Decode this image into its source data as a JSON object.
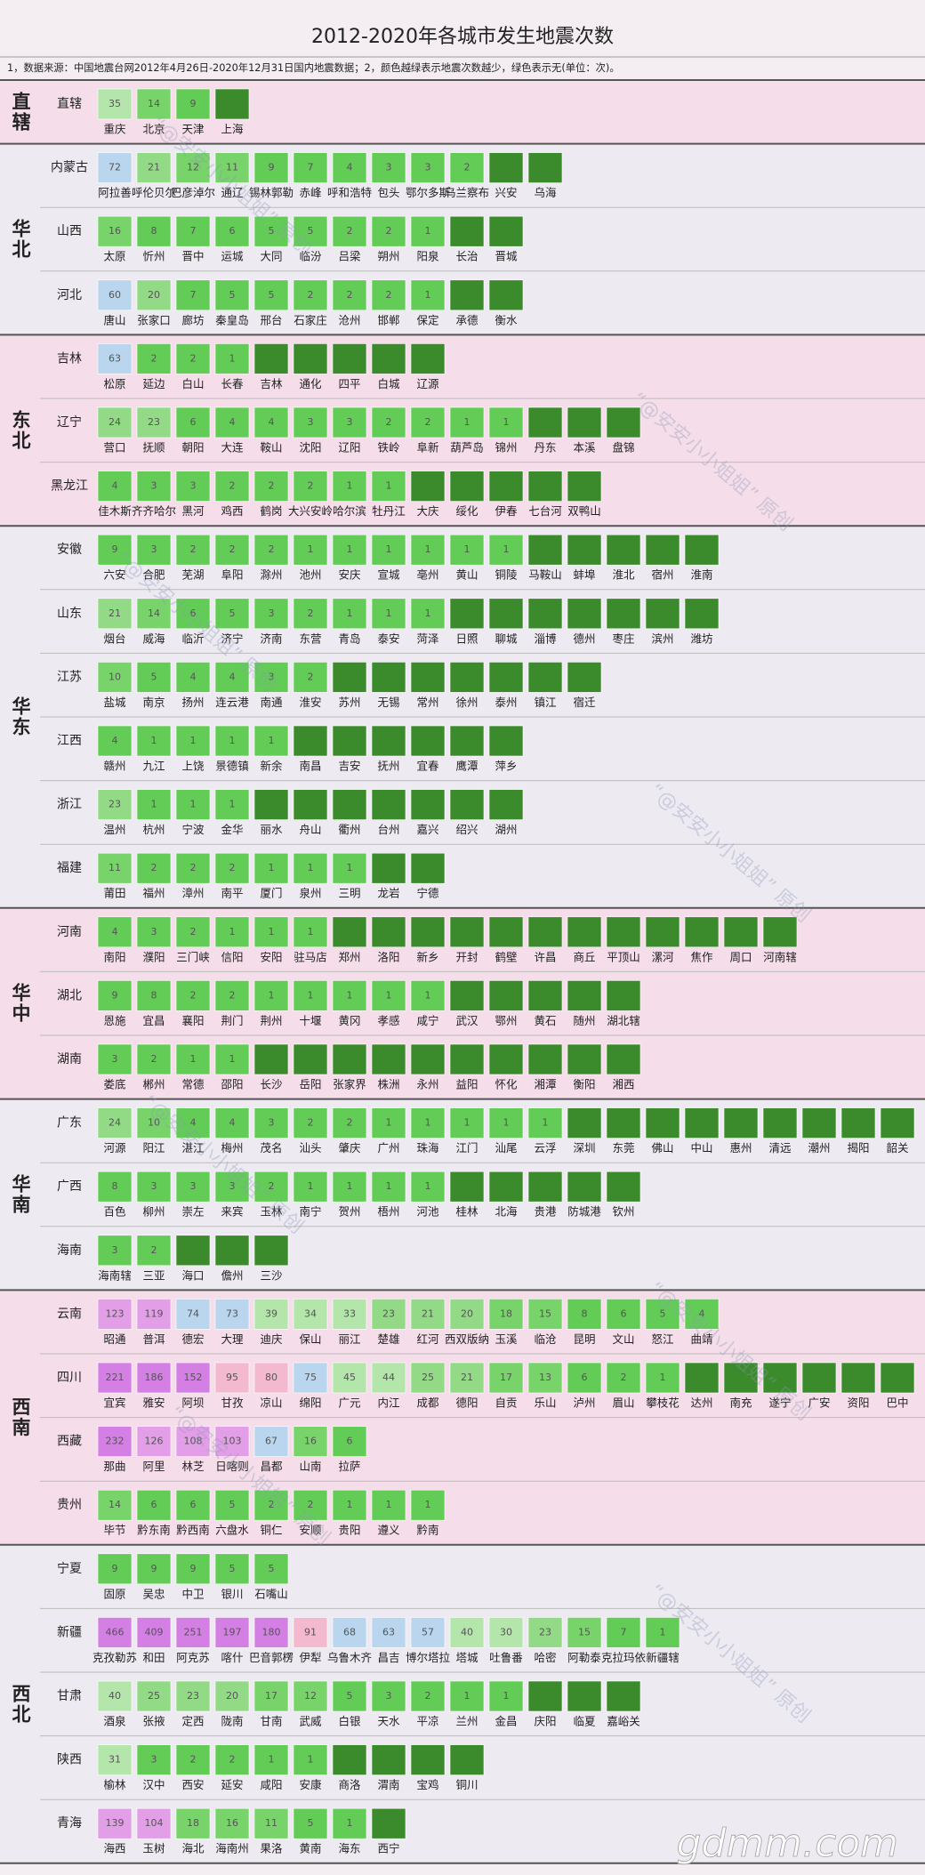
{
  "header": {
    "title": "2012-2020年各城市发生地震次数",
    "note": "1，数据来源：中国地震台网2012年4月26日-2020年12月31日国内地震数据；2，颜色越绿表示地震次数越少，绿色表示无(单位：次)。"
  },
  "watermark": "“@安安小小姐姐” 原创",
  "site": "gdmm.com",
  "regions": [
    {
      "name": "直辖",
      "provinces": [
        {
          "name": "直辖",
          "cities": [
            "重庆",
            "北京",
            "天津",
            "上海"
          ],
          "values": [
            35,
            14,
            9,
            null
          ]
        }
      ]
    },
    {
      "name": "华北",
      "provinces": [
        {
          "name": "内蒙古",
          "cities": [
            "阿拉善",
            "呼伦贝尔",
            "巴彦淖尔",
            "通辽",
            "锡林郭勒",
            "赤峰",
            "呼和浩特",
            "包头",
            "鄂尔多斯",
            "乌兰察布",
            "兴安",
            "乌海"
          ],
          "values": [
            72,
            21,
            12,
            11,
            9,
            7,
            4,
            3,
            3,
            2,
            null,
            null
          ]
        },
        {
          "name": "山西",
          "cities": [
            "太原",
            "忻州",
            "晋中",
            "运城",
            "大同",
            "临汾",
            "吕梁",
            "朔州",
            "阳泉",
            "长治",
            "晋城"
          ],
          "values": [
            16,
            8,
            7,
            6,
            5,
            5,
            2,
            2,
            1,
            null,
            null
          ]
        },
        {
          "name": "河北",
          "cities": [
            "唐山",
            "张家口",
            "廊坊",
            "秦皇岛",
            "邢台",
            "石家庄",
            "沧州",
            "邯郸",
            "保定",
            "承德",
            "衡水"
          ],
          "values": [
            60,
            20,
            7,
            5,
            5,
            2,
            2,
            2,
            1,
            null,
            null
          ]
        }
      ]
    },
    {
      "name": "东北",
      "provinces": [
        {
          "name": "吉林",
          "cities": [
            "松原",
            "延边",
            "白山",
            "长春",
            "吉林",
            "通化",
            "四平",
            "白城",
            "辽源"
          ],
          "values": [
            63,
            2,
            2,
            1,
            null,
            null,
            null,
            null,
            null
          ]
        },
        {
          "name": "辽宁",
          "cities": [
            "营口",
            "抚顺",
            "朝阳",
            "大连",
            "鞍山",
            "沈阳",
            "辽阳",
            "铁岭",
            "阜新",
            "葫芦岛",
            "锦州",
            "丹东",
            "本溪",
            "盘锦"
          ],
          "values": [
            24,
            23,
            6,
            4,
            4,
            3,
            3,
            2,
            2,
            1,
            1,
            null,
            null,
            null
          ]
        },
        {
          "name": "黑龙江",
          "cities": [
            "佳木斯",
            "齐齐哈尔",
            "黑河",
            "鸡西",
            "鹤岗",
            "大兴安岭",
            "哈尔滨",
            "牡丹江",
            "大庆",
            "绥化",
            "伊春",
            "七台河",
            "双鸭山"
          ],
          "values": [
            4,
            3,
            3,
            2,
            2,
            2,
            1,
            1,
            null,
            null,
            null,
            null,
            null
          ]
        }
      ]
    },
    {
      "name": "华东",
      "provinces": [
        {
          "name": "安徽",
          "cities": [
            "六安",
            "合肥",
            "芜湖",
            "阜阳",
            "滁州",
            "池州",
            "安庆",
            "宣城",
            "亳州",
            "黄山",
            "铜陵",
            "马鞍山",
            "蚌埠",
            "淮北",
            "宿州",
            "淮南"
          ],
          "values": [
            9,
            3,
            2,
            2,
            2,
            1,
            1,
            1,
            1,
            1,
            1,
            null,
            null,
            null,
            null,
            null
          ]
        },
        {
          "name": "山东",
          "cities": [
            "烟台",
            "威海",
            "临沂",
            "济宁",
            "济南",
            "东营",
            "青岛",
            "泰安",
            "菏泽",
            "日照",
            "聊城",
            "淄博",
            "德州",
            "枣庄",
            "滨州",
            "潍坊"
          ],
          "values": [
            21,
            14,
            6,
            5,
            3,
            2,
            1,
            1,
            1,
            null,
            null,
            null,
            null,
            null,
            null,
            null
          ]
        },
        {
          "name": "江苏",
          "cities": [
            "盐城",
            "南京",
            "扬州",
            "连云港",
            "南通",
            "淮安",
            "苏州",
            "无锡",
            "常州",
            "徐州",
            "泰州",
            "镇江",
            "宿迁"
          ],
          "values": [
            10,
            5,
            4,
            4,
            3,
            2,
            null,
            null,
            null,
            null,
            null,
            null,
            null
          ]
        },
        {
          "name": "江西",
          "cities": [
            "赣州",
            "九江",
            "上饶",
            "景德镇",
            "新余",
            "南昌",
            "吉安",
            "抚州",
            "宜春",
            "鹰潭",
            "萍乡"
          ],
          "values": [
            4,
            1,
            1,
            1,
            1,
            null,
            null,
            null,
            null,
            null,
            null
          ]
        },
        {
          "name": "浙江",
          "cities": [
            "温州",
            "杭州",
            "宁波",
            "金华",
            "丽水",
            "舟山",
            "衢州",
            "台州",
            "嘉兴",
            "绍兴",
            "湖州"
          ],
          "values": [
            23,
            1,
            1,
            1,
            null,
            null,
            null,
            null,
            null,
            null,
            null
          ]
        },
        {
          "name": "福建",
          "cities": [
            "莆田",
            "福州",
            "漳州",
            "南平",
            "厦门",
            "泉州",
            "三明",
            "龙岩",
            "宁德"
          ],
          "values": [
            11,
            2,
            2,
            2,
            1,
            1,
            1,
            null,
            null
          ]
        }
      ]
    },
    {
      "name": "华中",
      "provinces": [
        {
          "name": "河南",
          "cities": [
            "南阳",
            "濮阳",
            "三门峡",
            "信阳",
            "安阳",
            "驻马店",
            "郑州",
            "洛阳",
            "新乡",
            "开封",
            "鹤壁",
            "许昌",
            "商丘",
            "平顶山",
            "漯河",
            "焦作",
            "周口",
            "河南辖"
          ],
          "values": [
            4,
            3,
            2,
            1,
            1,
            1,
            null,
            null,
            null,
            null,
            null,
            null,
            null,
            null,
            null,
            null,
            null,
            null
          ]
        },
        {
          "name": "湖北",
          "cities": [
            "恩施",
            "宜昌",
            "襄阳",
            "荆门",
            "荆州",
            "十堰",
            "黄冈",
            "孝感",
            "咸宁",
            "武汉",
            "鄂州",
            "黄石",
            "随州",
            "湖北辖"
          ],
          "values": [
            9,
            8,
            2,
            2,
            1,
            1,
            1,
            1,
            1,
            null,
            null,
            null,
            null,
            null
          ]
        },
        {
          "name": "湖南",
          "cities": [
            "娄底",
            "郴州",
            "常德",
            "邵阳",
            "长沙",
            "岳阳",
            "张家界",
            "株洲",
            "永州",
            "益阳",
            "怀化",
            "湘潭",
            "衡阳",
            "湘西"
          ],
          "values": [
            3,
            2,
            1,
            1,
            null,
            null,
            null,
            null,
            null,
            null,
            null,
            null,
            null,
            null
          ]
        }
      ]
    },
    {
      "name": "华南",
      "provinces": [
        {
          "name": "广东",
          "cities": [
            "河源",
            "阳江",
            "湛江",
            "梅州",
            "茂名",
            "汕头",
            "肇庆",
            "广州",
            "珠海",
            "江门",
            "汕尾",
            "云浮",
            "深圳",
            "东莞",
            "佛山",
            "中山",
            "惠州",
            "清远",
            "潮州",
            "揭阳",
            "韶关"
          ],
          "values": [
            24,
            10,
            4,
            4,
            3,
            2,
            2,
            1,
            1,
            1,
            1,
            1,
            null,
            null,
            null,
            null,
            null,
            null,
            null,
            null,
            null
          ]
        },
        {
          "name": "广西",
          "cities": [
            "百色",
            "柳州",
            "崇左",
            "来宾",
            "玉林",
            "南宁",
            "贺州",
            "梧州",
            "河池",
            "桂林",
            "北海",
            "贵港",
            "防城港",
            "钦州"
          ],
          "values": [
            8,
            3,
            3,
            3,
            2,
            1,
            1,
            1,
            1,
            null,
            null,
            null,
            null,
            null
          ]
        },
        {
          "name": "海南",
          "cities": [
            "海南辖",
            "三亚",
            "海口",
            "儋州",
            "三沙"
          ],
          "values": [
            3,
            2,
            null,
            null,
            null
          ]
        }
      ]
    },
    {
      "name": "西南",
      "provinces": [
        {
          "name": "云南",
          "cities": [
            "昭通",
            "普洱",
            "德宏",
            "大理",
            "迪庆",
            "保山",
            "丽江",
            "楚雄",
            "红河",
            "西双版纳",
            "玉溪",
            "临沧",
            "昆明",
            "文山",
            "怒江",
            "曲靖"
          ],
          "values": [
            123,
            119,
            74,
            73,
            39,
            34,
            33,
            23,
            21,
            20,
            18,
            15,
            8,
            6,
            5,
            4
          ]
        },
        {
          "name": "四川",
          "cities": [
            "宜宾",
            "雅安",
            "阿坝",
            "甘孜",
            "凉山",
            "绵阳",
            "广元",
            "内江",
            "成都",
            "德阳",
            "自贡",
            "乐山",
            "泸州",
            "眉山",
            "攀枝花",
            "达州",
            "南充",
            "遂宁",
            "广安",
            "资阳",
            "巴中"
          ],
          "values": [
            221,
            186,
            152,
            95,
            80,
            75,
            45,
            44,
            25,
            21,
            17,
            13,
            6,
            2,
            1,
            null,
            null,
            null,
            null,
            null,
            null
          ]
        },
        {
          "name": "西藏",
          "cities": [
            "那曲",
            "阿里",
            "林芝",
            "日喀则",
            "昌都",
            "山南",
            "拉萨"
          ],
          "values": [
            232,
            126,
            108,
            103,
            67,
            16,
            6
          ]
        },
        {
          "name": "贵州",
          "cities": [
            "毕节",
            "黔东南",
            "黔西南",
            "六盘水",
            "铜仁",
            "安顺",
            "贵阳",
            "遵义",
            "黔南"
          ],
          "values": [
            14,
            6,
            6,
            5,
            2,
            2,
            1,
            1,
            1
          ]
        }
      ]
    },
    {
      "name": "西北",
      "provinces": [
        {
          "name": "宁夏",
          "cities": [
            "固原",
            "吴忠",
            "中卫",
            "银川",
            "石嘴山"
          ],
          "values": [
            9,
            9,
            9,
            5,
            5
          ]
        },
        {
          "name": "新疆",
          "cities": [
            "克孜勒苏",
            "和田",
            "阿克苏",
            "喀什",
            "巴音郭楞",
            "伊犁",
            "乌鲁木齐",
            "昌吉",
            "博尔塔拉",
            "塔城",
            "吐鲁番",
            "哈密",
            "阿勒泰",
            "克拉玛依",
            "新疆辖"
          ],
          "values": [
            466,
            409,
            251,
            197,
            180,
            91,
            68,
            63,
            57,
            40,
            30,
            23,
            15,
            7,
            1
          ]
        },
        {
          "name": "甘肃",
          "cities": [
            "酒泉",
            "张掖",
            "定西",
            "陇南",
            "甘南",
            "武威",
            "白银",
            "天水",
            "平凉",
            "兰州",
            "金昌",
            "庆阳",
            "临夏",
            "嘉峪关"
          ],
          "values": [
            40,
            25,
            23,
            20,
            17,
            12,
            5,
            3,
            2,
            1,
            1,
            null,
            null,
            null
          ]
        },
        {
          "name": "陕西",
          "cities": [
            "榆林",
            "汉中",
            "西安",
            "延安",
            "咸阳",
            "安康",
            "商洛",
            "渭南",
            "宝鸡",
            "铜川"
          ],
          "values": [
            31,
            3,
            2,
            2,
            1,
            1,
            null,
            null,
            null,
            null
          ]
        },
        {
          "name": "青海",
          "cities": [
            "海西",
            "玉树",
            "海北",
            "海南州",
            "果洛",
            "黄南",
            "海东",
            "西宁"
          ],
          "values": [
            139,
            104,
            18,
            16,
            11,
            5,
            1,
            null
          ]
        }
      ]
    }
  ]
}
